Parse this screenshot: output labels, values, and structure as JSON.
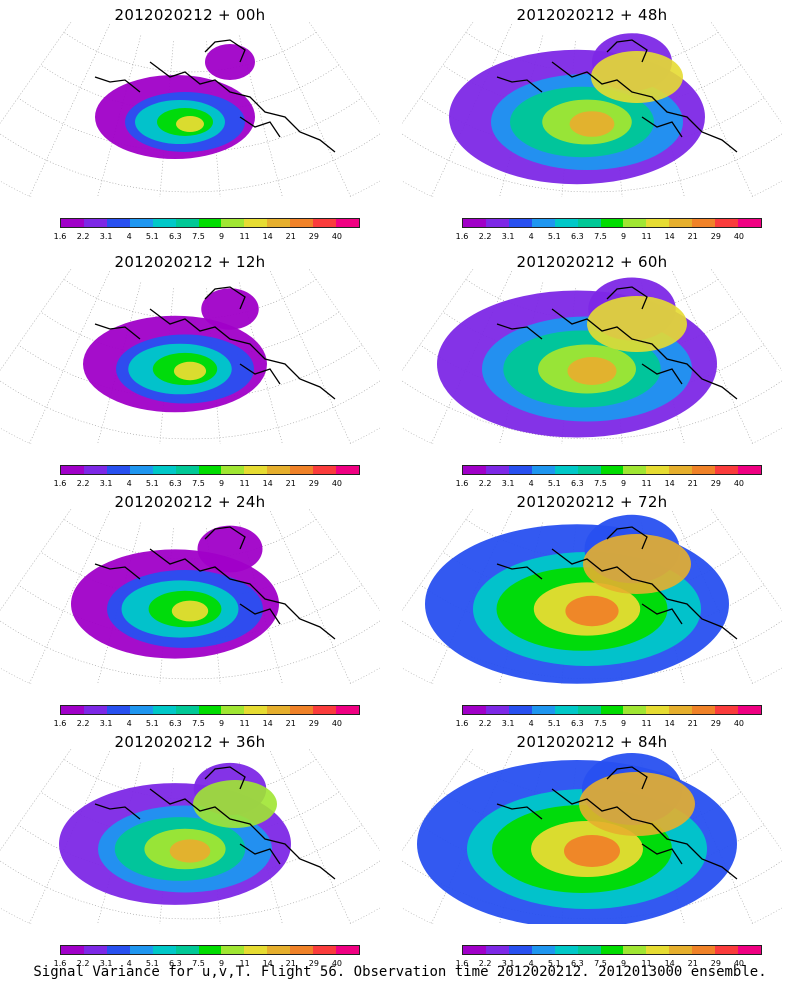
{
  "caption": "Signal Variance for u,v,T. Flight 56. Observation time 2012020212. 2012013000 ensemble.",
  "colorbar": {
    "labels": [
      "1.6",
      "2.2",
      "3.1",
      "4",
      "5.1",
      "6.3",
      "7.5",
      "9",
      "11",
      "14",
      "21",
      "29",
      "40"
    ],
    "colors": [
      "#a000c8",
      "#7d28e6",
      "#2850f0",
      "#1e96f0",
      "#00c8c8",
      "#00c896",
      "#00dc00",
      "#a0e632",
      "#e6dc32",
      "#e6af2d",
      "#f08228",
      "#fa3c3c",
      "#f00082"
    ]
  },
  "panels": [
    {
      "title": "2012020212 + 00h",
      "level": 0
    },
    {
      "title": "2012020212 + 48h",
      "level": 4
    },
    {
      "title": "2012020212 + 12h",
      "level": 1
    },
    {
      "title": "2012020212 + 60h",
      "level": 5
    },
    {
      "title": "2012020212 + 24h",
      "level": 2
    },
    {
      "title": "2012020212 + 72h",
      "level": 6
    },
    {
      "title": "2012020212 + 36h",
      "level": 3
    },
    {
      "title": "2012020212 + 84h",
      "level": 7
    }
  ]
}
